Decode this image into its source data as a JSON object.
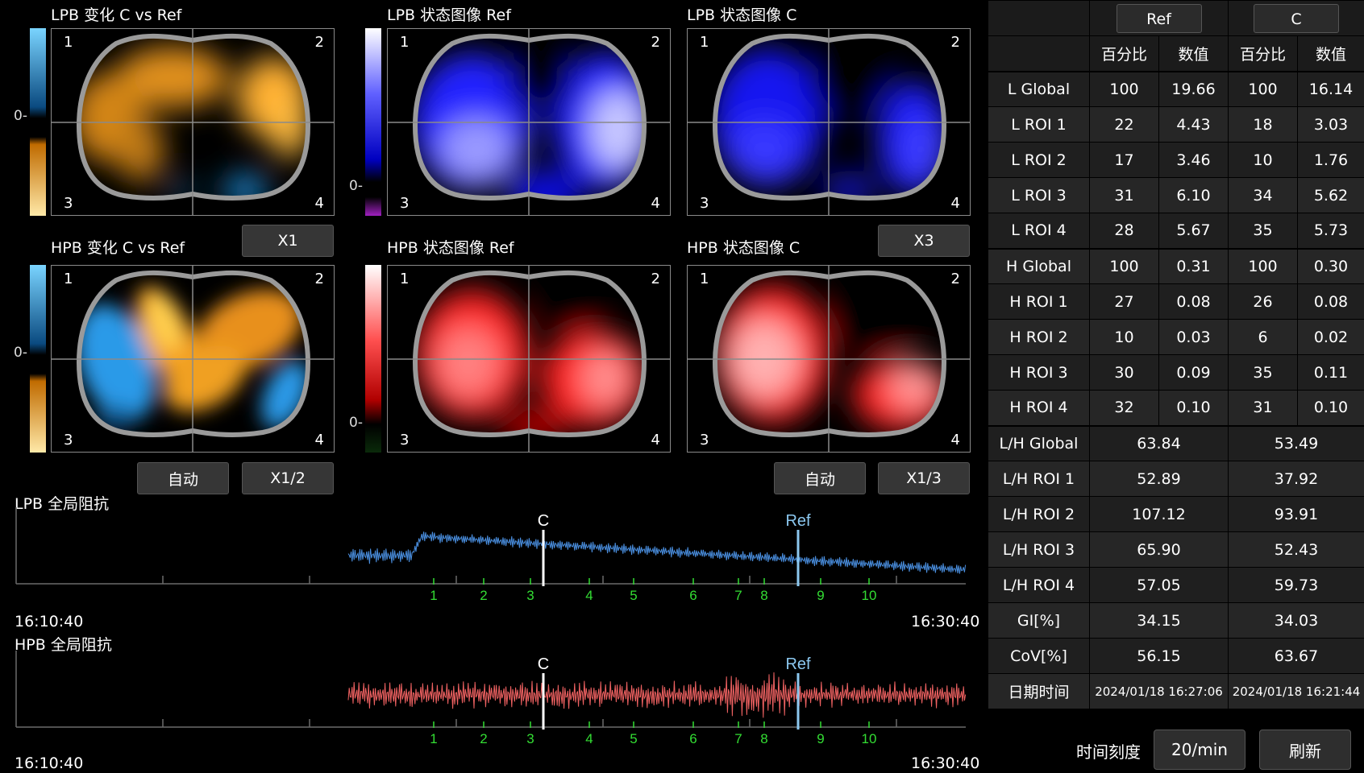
{
  "images": {
    "lpb_change": {
      "title": "LPB 变化 C vs Ref"
    },
    "lpb_ref": {
      "title": "LPB 状态图像 Ref"
    },
    "lpb_c": {
      "title": "LPB 状态图像 C"
    },
    "hpb_change": {
      "title": "HPB 变化 C vs Ref"
    },
    "hpb_ref": {
      "title": "HPB 状态图像 Ref"
    },
    "hpb_c": {
      "title": "HPB 状态图像 C"
    },
    "quadrants": [
      "1",
      "2",
      "3",
      "4"
    ],
    "zero_label": "0-"
  },
  "buttons": {
    "x1": "X1",
    "x3": "X3",
    "auto_left": "自动",
    "x1_2": "X1/2",
    "auto_right": "自动",
    "x1_3": "X1/3"
  },
  "waves": {
    "lpb": {
      "title": "LPB 全局阻抗",
      "start": "16:10:40",
      "end": "16:30:40"
    },
    "hpb": {
      "title": "HPB 全局阻抗",
      "start": "16:10:40",
      "end": "16:30:40"
    },
    "marker_c": "C",
    "marker_ref": "Ref",
    "breath_numbers": [
      "1",
      "2",
      "3",
      "4",
      "5",
      "6",
      "7",
      "8",
      "9",
      "10"
    ]
  },
  "colors": {
    "lpb_wave": "#4a8fe0",
    "hpb_wave": "#f06262",
    "breath_number": "#33dd33",
    "ref_marker": "#8cc8f0",
    "change_increase": "#f4a020",
    "change_decrease": "#33a8f0"
  },
  "table": {
    "col_headers": [
      "Ref",
      "C"
    ],
    "sub_headers": [
      "百分比",
      "数值",
      "百分比",
      "数值"
    ],
    "rows": [
      {
        "label": "L Global",
        "values": [
          "100",
          "19.66",
          "100",
          "16.14"
        ]
      },
      {
        "label": "L ROI 1",
        "values": [
          "22",
          "4.43",
          "18",
          "3.03"
        ]
      },
      {
        "label": "L ROI 2",
        "values": [
          "17",
          "3.46",
          "10",
          "1.76"
        ]
      },
      {
        "label": "L ROI 3",
        "values": [
          "31",
          "6.10",
          "34",
          "5.62"
        ]
      },
      {
        "label": "L ROI 4",
        "values": [
          "28",
          "5.67",
          "35",
          "5.73"
        ]
      },
      {
        "label": "H Global",
        "values": [
          "100",
          "0.31",
          "100",
          "0.30"
        ]
      },
      {
        "label": "H ROI 1",
        "values": [
          "27",
          "0.08",
          "26",
          "0.08"
        ]
      },
      {
        "label": "H ROI 2",
        "values": [
          "10",
          "0.03",
          "6",
          "0.02"
        ]
      },
      {
        "label": "H ROI 3",
        "values": [
          "30",
          "0.09",
          "35",
          "0.11"
        ]
      },
      {
        "label": "H ROI 4",
        "values": [
          "32",
          "0.10",
          "31",
          "0.10"
        ]
      }
    ],
    "ratio_rows": [
      {
        "label": "L/H Global",
        "ref": "63.84",
        "c": "53.49"
      },
      {
        "label": "L/H ROI 1",
        "ref": "52.89",
        "c": "37.92"
      },
      {
        "label": "L/H ROI 2",
        "ref": "107.12",
        "c": "93.91"
      },
      {
        "label": "L/H ROI 3",
        "ref": "65.90",
        "c": "52.43"
      },
      {
        "label": "L/H ROI 4",
        "ref": "57.05",
        "c": "59.73"
      },
      {
        "label": "GI[%]",
        "ref": "34.15",
        "c": "34.03"
      },
      {
        "label": "CoV[%]",
        "ref": "56.15",
        "c": "63.67"
      },
      {
        "label": "日期时间",
        "ref": "2024/01/18 16:27:06",
        "c": "2024/01/18 16:21:44"
      }
    ]
  },
  "footer": {
    "time_scale_label": "时间刻度",
    "time_scale_value": "20/min",
    "refresh": "刷新"
  }
}
